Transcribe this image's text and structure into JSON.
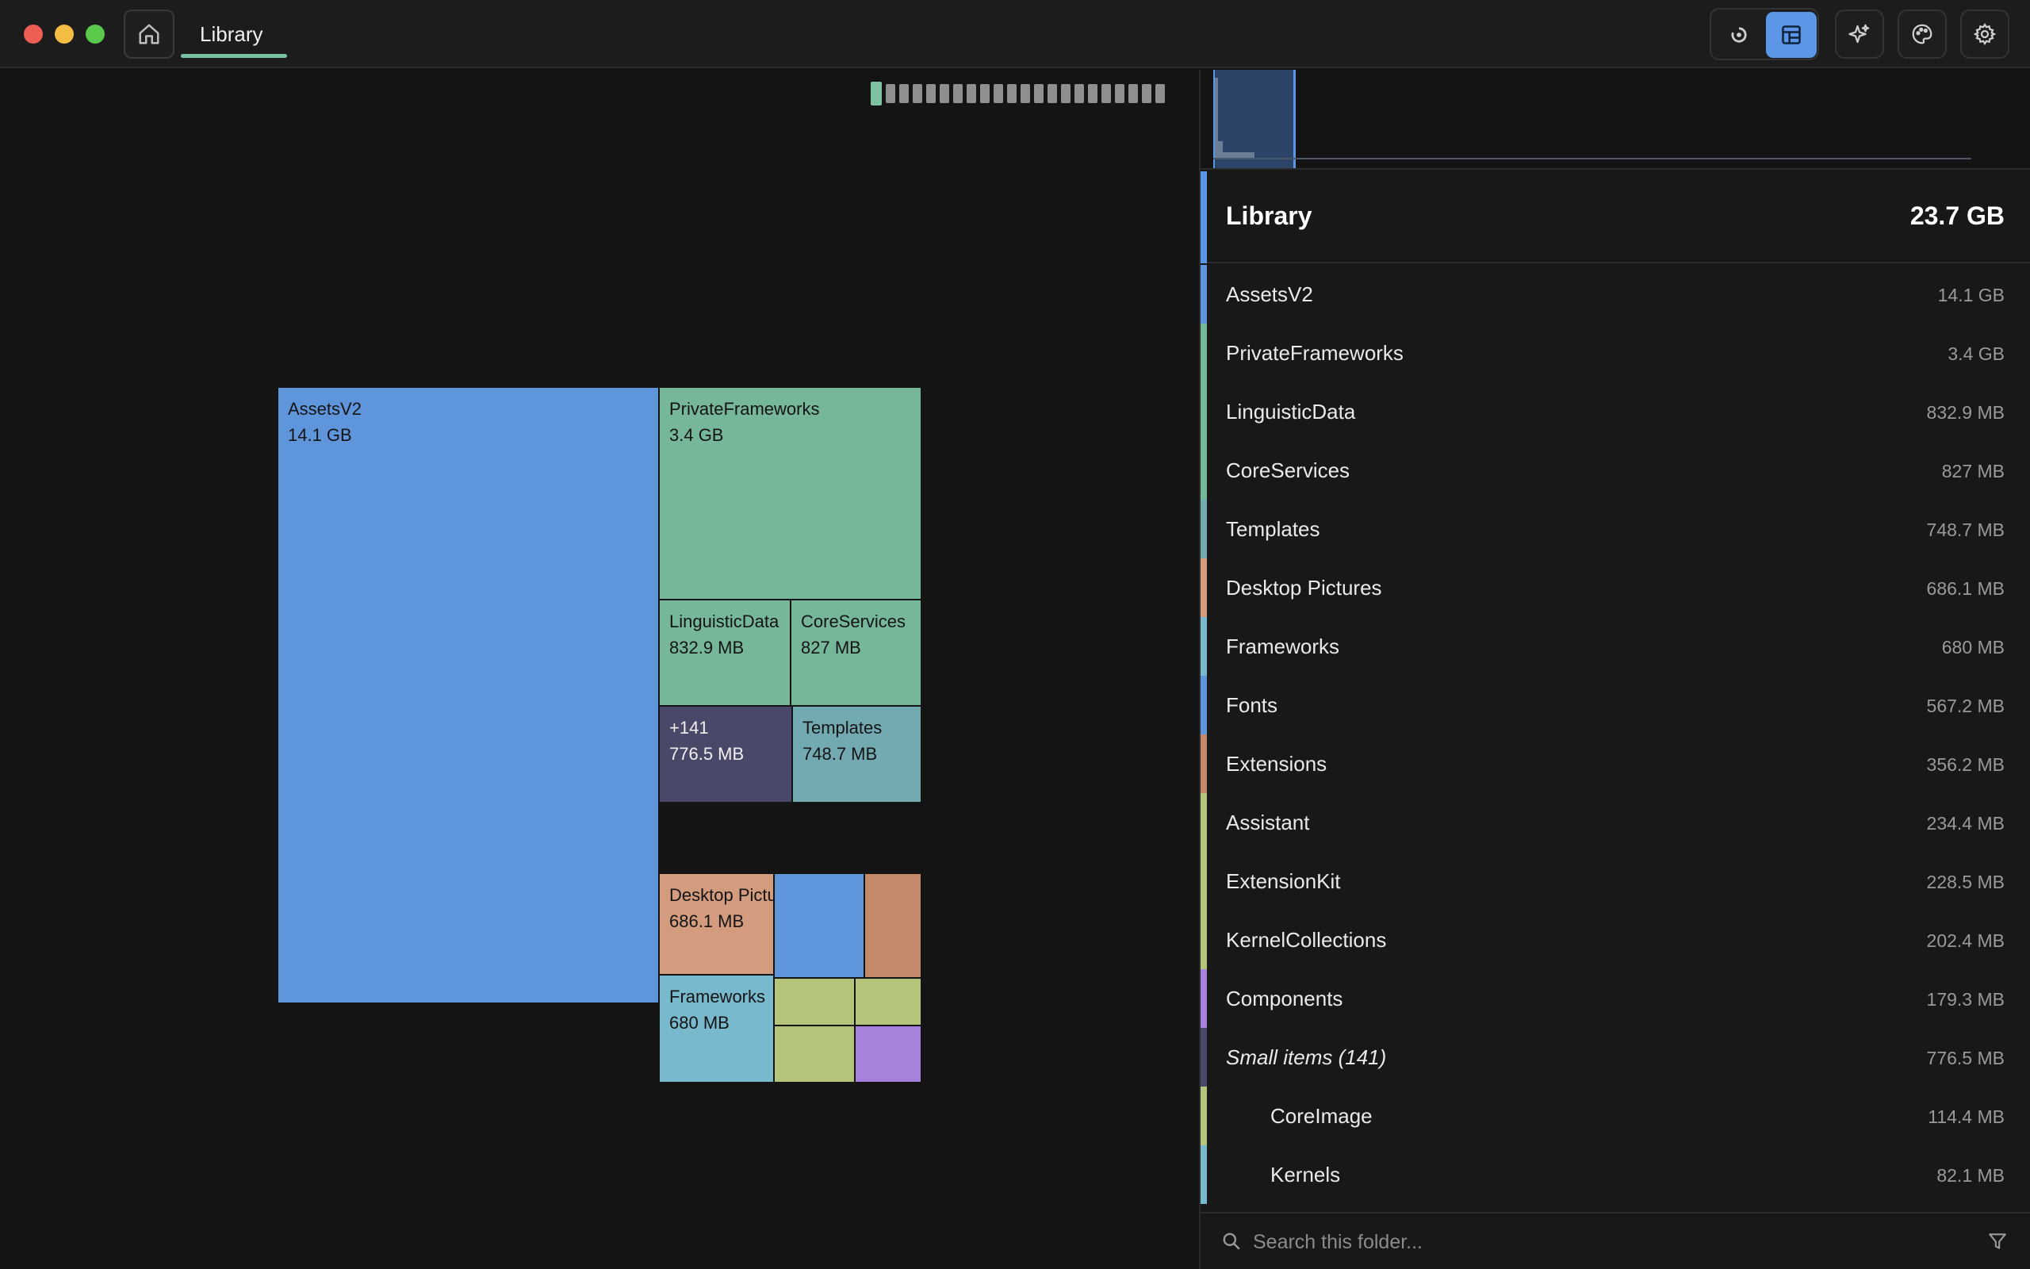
{
  "breadcrumb": {
    "current": "Library"
  },
  "toolbar": {
    "view_icons": [
      "sunburst-icon",
      "treemap-icon"
    ],
    "tools": [
      "sparkle-icon",
      "palette-icon",
      "gear-icon"
    ]
  },
  "colors": {
    "accent": "#5b97e6",
    "blue": "#5f96db",
    "green": "#76b699",
    "teal": "#73a9b1",
    "salmon": "#d39c7f",
    "cyan": "#79b9cd",
    "brown": "#c4896b",
    "olive": "#b4c47a",
    "purple": "#a782dc",
    "slate": "#4a4868"
  },
  "treemap": {
    "cells": [
      {
        "name": "AssetsV2",
        "size": "14.1 GB"
      },
      {
        "name": "PrivateFrameworks",
        "size": "3.4 GB"
      },
      {
        "name": "LinguisticData",
        "size": "832.9 MB"
      },
      {
        "name": "CoreServices",
        "size": "827 MB"
      },
      {
        "name": "+141",
        "size": "776.5 MB"
      },
      {
        "name": "Templates",
        "size": "748.7 MB"
      },
      {
        "name": "Desktop Pictures",
        "size": "686.1 MB"
      },
      {
        "name": "Frameworks",
        "size": "680 MB"
      }
    ]
  },
  "panel": {
    "title": "Library",
    "total": "23.7 GB",
    "items": [
      {
        "name": "AssetsV2",
        "size": "14.1 GB",
        "color": "#5f96db"
      },
      {
        "name": "PrivateFrameworks",
        "size": "3.4 GB",
        "color": "#76b699"
      },
      {
        "name": "LinguisticData",
        "size": "832.9 MB",
        "color": "#76b699"
      },
      {
        "name": "CoreServices",
        "size": "827 MB",
        "color": "#76b699"
      },
      {
        "name": "Templates",
        "size": "748.7 MB",
        "color": "#73a9b1"
      },
      {
        "name": "Desktop Pictures",
        "size": "686.1 MB",
        "color": "#d39c7f"
      },
      {
        "name": "Frameworks",
        "size": "680 MB",
        "color": "#79b9cd"
      },
      {
        "name": "Fonts",
        "size": "567.2 MB",
        "color": "#5f96db"
      },
      {
        "name": "Extensions",
        "size": "356.2 MB",
        "color": "#c4896b"
      },
      {
        "name": "Assistant",
        "size": "234.4 MB",
        "color": "#b4c47a"
      },
      {
        "name": "ExtensionKit",
        "size": "228.5 MB",
        "color": "#b4c47a"
      },
      {
        "name": "KernelCollections",
        "size": "202.4 MB",
        "color": "#b4c47a"
      },
      {
        "name": "Components",
        "size": "179.3 MB",
        "color": "#a782dc"
      },
      {
        "name": "Small items (141)",
        "size": "776.5 MB",
        "color": "#4a4868"
      },
      {
        "name": "CoreImage",
        "size": "114.4 MB",
        "color": "#b4c47a"
      },
      {
        "name": "Kernels",
        "size": "82.1 MB",
        "color": "#79b9cd"
      }
    ]
  },
  "search": {
    "placeholder": "Search this folder..."
  }
}
